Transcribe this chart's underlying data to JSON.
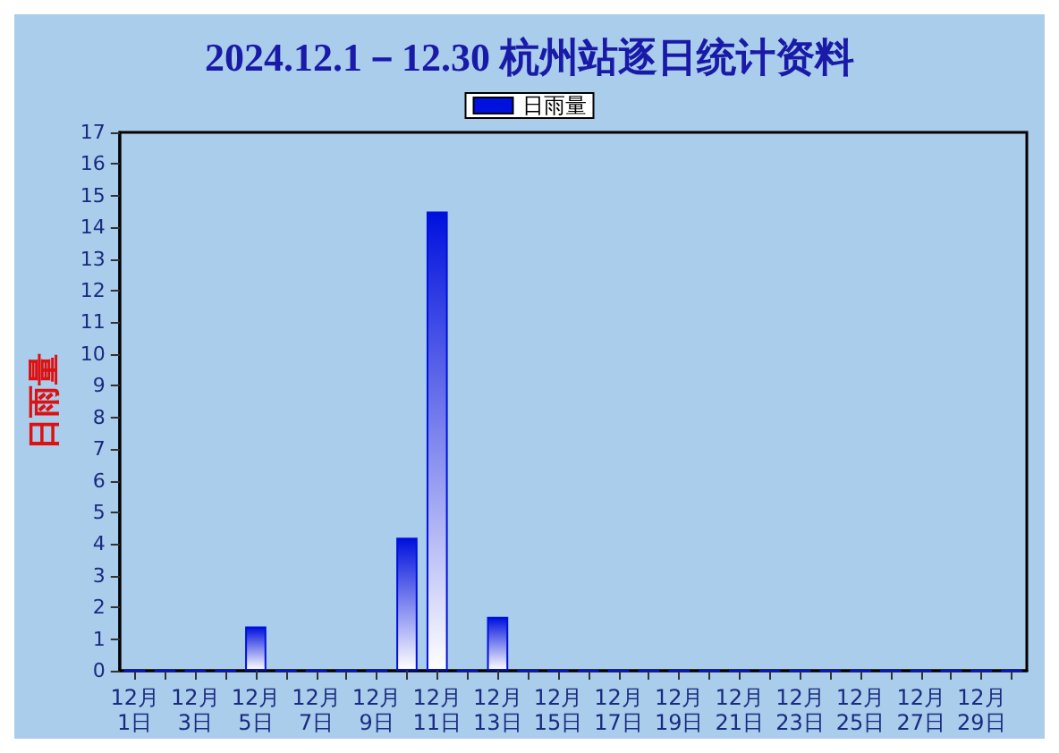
{
  "chart_data": {
    "type": "bar",
    "title": "2024.12.1－12.30 杭州站逐日统计资料",
    "ylabel": "日雨量",
    "categories": [
      "12月1日",
      null,
      "12月3日",
      null,
      "12月5日",
      null,
      "12月7日",
      null,
      "12月9日",
      null,
      "12月11日",
      null,
      "12月13日",
      null,
      "12月15日",
      null,
      "12月17日",
      null,
      "12月19日",
      null,
      "12月21日",
      null,
      "12月23日",
      null,
      "12月25日",
      null,
      "12月27日",
      null,
      "12月29日",
      null
    ],
    "series": [
      {
        "name": "日雨量",
        "color": "#0010dd",
        "values": [
          0,
          0,
          0,
          0,
          1.4,
          0,
          0,
          0,
          0,
          4.2,
          14.5,
          0,
          1.7,
          0,
          0,
          0,
          0,
          0,
          0,
          0,
          0,
          0,
          0,
          0,
          0,
          0,
          0,
          0,
          0,
          0
        ]
      }
    ],
    "ylim": [
      0,
      17
    ],
    "yticks": [
      0,
      1,
      2,
      3,
      4,
      5,
      6,
      7,
      8,
      9,
      10,
      11,
      12,
      13,
      14,
      15,
      16,
      17
    ],
    "grid": false,
    "legend": "top"
  }
}
